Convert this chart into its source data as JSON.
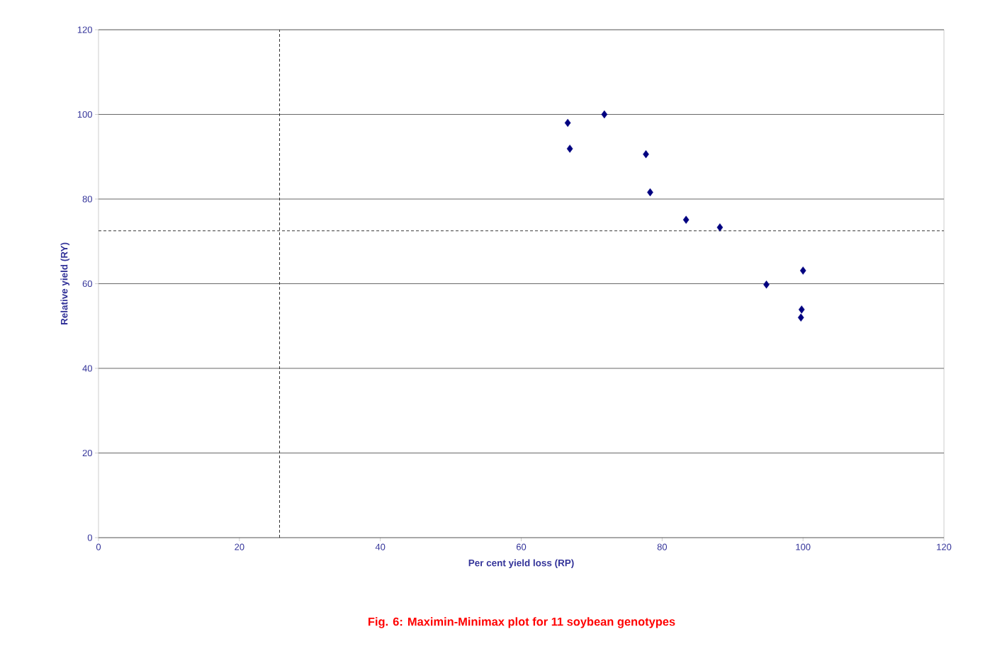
{
  "chart_data": {
    "type": "scatter",
    "title": "Fig. 6: Maximin-Minimax plot for 11 soybean genotypes",
    "xlabel": "Per cent yield loss (RP)",
    "ylabel": "Relative yield (RY)",
    "x": [
      66.6,
      66.9,
      71.8,
      77.7,
      78.3,
      83.4,
      88.2,
      94.8,
      100.0,
      99.8,
      99.7
    ],
    "values": [
      98.0,
      91.9,
      100.0,
      90.6,
      81.6,
      75.1,
      73.3,
      59.8,
      63.1,
      53.9,
      52.0
    ],
    "color": "#000080",
    "marker": "diamond",
    "grid": "y",
    "xlim": [
      0,
      120
    ],
    "ylim": [
      0,
      120
    ],
    "xticks": [
      0,
      20,
      40,
      60,
      80,
      100,
      120
    ],
    "yticks": [
      0,
      20,
      40,
      60,
      80,
      100,
      120
    ],
    "ref_lines": [
      {
        "axis": "x",
        "value": 25.7,
        "line_style": "dashed"
      },
      {
        "axis": "y",
        "value": 72.5,
        "line_style": "dashed"
      }
    ]
  }
}
